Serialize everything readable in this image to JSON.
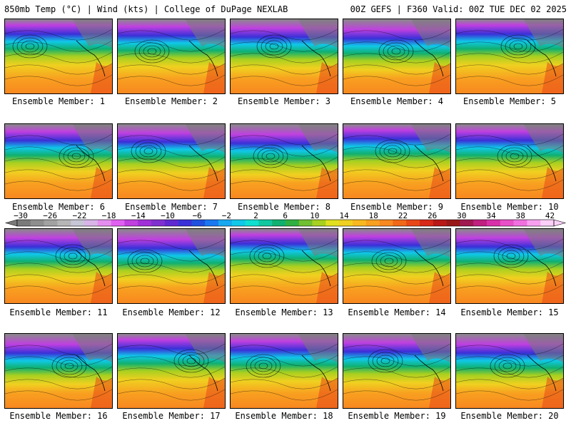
{
  "header": {
    "left": "850mb Temp (°C) | Wind (kts) | College of DuPage NEXLAB",
    "right": "00Z GEFS | F360 Valid: 00Z TUE DEC 02 2025"
  },
  "members": [
    {
      "label": "Ensemble Member: 1"
    },
    {
      "label": "Ensemble Member: 2"
    },
    {
      "label": "Ensemble Member: 3"
    },
    {
      "label": "Ensemble Member: 4"
    },
    {
      "label": "Ensemble Member: 5"
    },
    {
      "label": "Ensemble Member: 6"
    },
    {
      "label": "Ensemble Member: 7"
    },
    {
      "label": "Ensemble Member: 8"
    },
    {
      "label": "Ensemble Member: 9"
    },
    {
      "label": "Ensemble Member: 10"
    },
    {
      "label": "Ensemble Member: 11"
    },
    {
      "label": "Ensemble Member: 12"
    },
    {
      "label": "Ensemble Member: 13"
    },
    {
      "label": "Ensemble Member: 14"
    },
    {
      "label": "Ensemble Member: 15"
    },
    {
      "label": "Ensemble Member: 16"
    },
    {
      "label": "Ensemble Member: 17"
    },
    {
      "label": "Ensemble Member: 18"
    },
    {
      "label": "Ensemble Member: 19"
    },
    {
      "label": "Ensemble Member: 20"
    }
  ],
  "colorbar": {
    "labels": [
      "−30",
      "−26",
      "−22",
      "−18",
      "−14",
      "−10",
      "−6",
      "−2",
      "2",
      "6",
      "10",
      "14",
      "18",
      "22",
      "26",
      "30",
      "34",
      "38",
      "42"
    ],
    "colors": [
      "#7a7a7a",
      "#8e8e8e",
      "#a2a2a2",
      "#b6b6b6",
      "#c6c6d6",
      "#d8b4e8",
      "#e68ef0",
      "#e060f0",
      "#c040e0",
      "#a030d8",
      "#8030d0",
      "#6028d0",
      "#3a30d8",
      "#2050e0",
      "#1a78f0",
      "#18a8f0",
      "#10c8e8",
      "#10e0d0",
      "#10c8a0",
      "#10b070",
      "#30b040",
      "#70c030",
      "#a8d020",
      "#e0e020",
      "#f0d020",
      "#f8b820",
      "#f8a020",
      "#f88820",
      "#f06818",
      "#e84818",
      "#d82818",
      "#b81818",
      "#981818",
      "#a01850",
      "#c02080",
      "#d830a8",
      "#e850c8",
      "#f070e0",
      "#f8a0f0",
      "#fcd0f8"
    ]
  }
}
